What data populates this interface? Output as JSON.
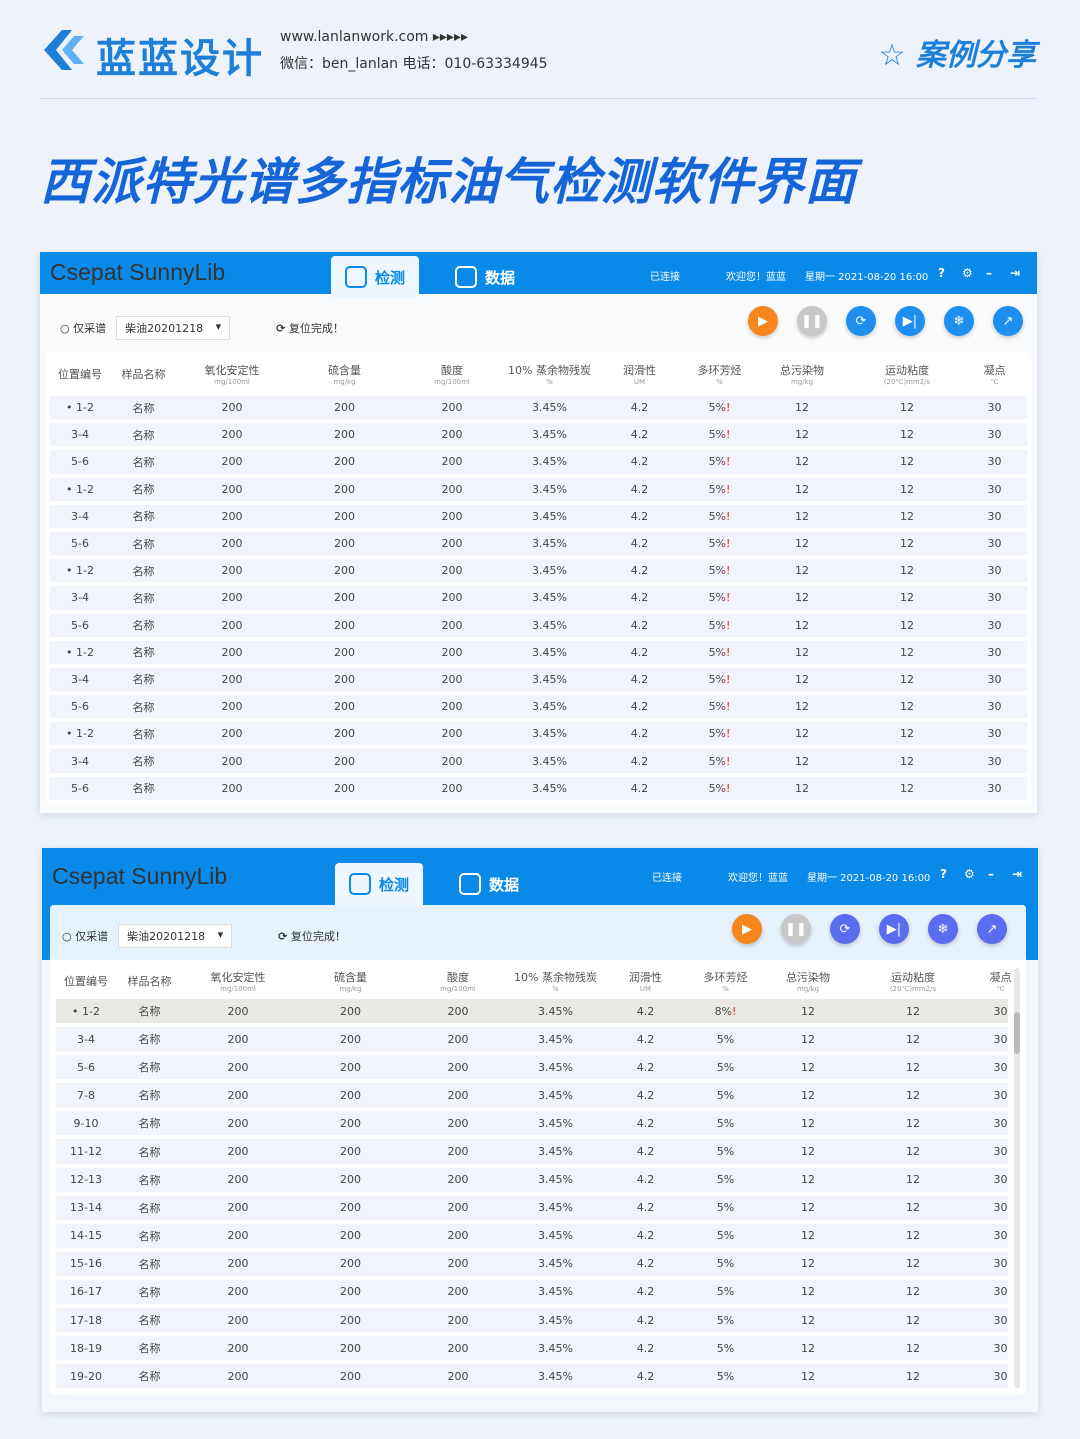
{
  "header": {
    "brand": "蓝蓝设计",
    "site": "www.lanlanwork.com  ▸▸▸▸▸",
    "contact": "微信：ben_lanlan    电话：010-63334945",
    "case_share": "案例分享"
  },
  "title": "西派特光谱多指标油气检测软件界面",
  "colors": {
    "accent": "#0a8ae8",
    "title": "#1565d8",
    "play": "#f7861c",
    "alert": "#e02020"
  },
  "app": {
    "name": "Csepat SunnyLib",
    "tabs": [
      {
        "label": "检测",
        "icon": "detect-icon",
        "active": true
      },
      {
        "label": "数据",
        "icon": "data-icon"
      }
    ],
    "connected": "已连接",
    "welcome": "欢迎您！蓝蓝",
    "datetime": "星期一  2021-08-20  16:00",
    "spectrum_only": "仅采谱",
    "sample_select": "柴油20201218",
    "reset_status": "复位完成！",
    "buttons": [
      "play",
      "pause",
      "refresh",
      "skip",
      "snowflake",
      "export"
    ]
  },
  "columns": [
    {
      "name": "位置编号",
      "unit": ""
    },
    {
      "name": "样品名称",
      "unit": ""
    },
    {
      "name": "氧化安定性",
      "unit": "mg/100ml"
    },
    {
      "name": "硫含量",
      "unit": "mg/kg"
    },
    {
      "name": "酸度",
      "unit": "mg/100ml"
    },
    {
      "name": "10% 蒸余物残炭",
      "unit": "%"
    },
    {
      "name": "润滑性",
      "unit": "UM"
    },
    {
      "name": "多环芳烃",
      "unit": "%"
    },
    {
      "name": "总污染物",
      "unit": "mg/kg"
    },
    {
      "name": "运动粘度",
      "unit": "(20℃)mm2/s"
    },
    {
      "name": "凝点",
      "unit": "℃"
    }
  ],
  "table1": [
    [
      "• 1-2",
      "名称",
      "200",
      "200",
      "200",
      "3.45%",
      "4.2",
      "5%!",
      "12",
      "12",
      "30"
    ],
    [
      "3-4",
      "名称",
      "200",
      "200",
      "200",
      "3.45%",
      "4.2",
      "5%!",
      "12",
      "12",
      "30"
    ],
    [
      "5-6",
      "名称",
      "200",
      "200",
      "200",
      "3.45%",
      "4.2",
      "5%!",
      "12",
      "12",
      "30"
    ],
    [
      "• 1-2",
      "名称",
      "200",
      "200",
      "200",
      "3.45%",
      "4.2",
      "5%!",
      "12",
      "12",
      "30"
    ],
    [
      "3-4",
      "名称",
      "200",
      "200",
      "200",
      "3.45%",
      "4.2",
      "5%!",
      "12",
      "12",
      "30"
    ],
    [
      "5-6",
      "名称",
      "200",
      "200",
      "200",
      "3.45%",
      "4.2",
      "5%!",
      "12",
      "12",
      "30"
    ],
    [
      "• 1-2",
      "名称",
      "200",
      "200",
      "200",
      "3.45%",
      "4.2",
      "5%!",
      "12",
      "12",
      "30"
    ],
    [
      "3-4",
      "名称",
      "200",
      "200",
      "200",
      "3.45%",
      "4.2",
      "5%!",
      "12",
      "12",
      "30"
    ],
    [
      "5-6",
      "名称",
      "200",
      "200",
      "200",
      "3.45%",
      "4.2",
      "5%!",
      "12",
      "12",
      "30"
    ],
    [
      "• 1-2",
      "名称",
      "200",
      "200",
      "200",
      "3.45%",
      "4.2",
      "5%!",
      "12",
      "12",
      "30"
    ],
    [
      "3-4",
      "名称",
      "200",
      "200",
      "200",
      "3.45%",
      "4.2",
      "5%!",
      "12",
      "12",
      "30"
    ],
    [
      "5-6",
      "名称",
      "200",
      "200",
      "200",
      "3.45%",
      "4.2",
      "5%!",
      "12",
      "12",
      "30"
    ],
    [
      "• 1-2",
      "名称",
      "200",
      "200",
      "200",
      "3.45%",
      "4.2",
      "5%!",
      "12",
      "12",
      "30"
    ],
    [
      "3-4",
      "名称",
      "200",
      "200",
      "200",
      "3.45%",
      "4.2",
      "5%!",
      "12",
      "12",
      "30"
    ],
    [
      "5-6",
      "名称",
      "200",
      "200",
      "200",
      "3.45%",
      "4.2",
      "5%!",
      "12",
      "12",
      "30"
    ]
  ],
  "table2": [
    [
      "• 1-2",
      "名称",
      "200",
      "200",
      "200",
      "3.45%",
      "4.2",
      "8%!",
      "12",
      "12",
      "30"
    ],
    [
      "3-4",
      "名称",
      "200",
      "200",
      "200",
      "3.45%",
      "4.2",
      "5%",
      "12",
      "12",
      "30"
    ],
    [
      "5-6",
      "名称",
      "200",
      "200",
      "200",
      "3.45%",
      "4.2",
      "5%",
      "12",
      "12",
      "30"
    ],
    [
      "7-8",
      "名称",
      "200",
      "200",
      "200",
      "3.45%",
      "4.2",
      "5%",
      "12",
      "12",
      "30"
    ],
    [
      "9-10",
      "名称",
      "200",
      "200",
      "200",
      "3.45%",
      "4.2",
      "5%",
      "12",
      "12",
      "30"
    ],
    [
      "11-12",
      "名称",
      "200",
      "200",
      "200",
      "3.45%",
      "4.2",
      "5%",
      "12",
      "12",
      "30"
    ],
    [
      "12-13",
      "名称",
      "200",
      "200",
      "200",
      "3.45%",
      "4.2",
      "5%",
      "12",
      "12",
      "30"
    ],
    [
      "13-14",
      "名称",
      "200",
      "200",
      "200",
      "3.45%",
      "4.2",
      "5%",
      "12",
      "12",
      "30"
    ],
    [
      "14-15",
      "名称",
      "200",
      "200",
      "200",
      "3.45%",
      "4.2",
      "5%",
      "12",
      "12",
      "30"
    ],
    [
      "15-16",
      "名称",
      "200",
      "200",
      "200",
      "3.45%",
      "4.2",
      "5%",
      "12",
      "12",
      "30"
    ],
    [
      "16-17",
      "名称",
      "200",
      "200",
      "200",
      "3.45%",
      "4.2",
      "5%",
      "12",
      "12",
      "30"
    ],
    [
      "17-18",
      "名称",
      "200",
      "200",
      "200",
      "3.45%",
      "4.2",
      "5%",
      "12",
      "12",
      "30"
    ],
    [
      "18-19",
      "名称",
      "200",
      "200",
      "200",
      "3.45%",
      "4.2",
      "5%",
      "12",
      "12",
      "30"
    ],
    [
      "19-20",
      "名称",
      "200",
      "200",
      "200",
      "3.45%",
      "4.2",
      "5%",
      "12",
      "12",
      "30"
    ]
  ]
}
